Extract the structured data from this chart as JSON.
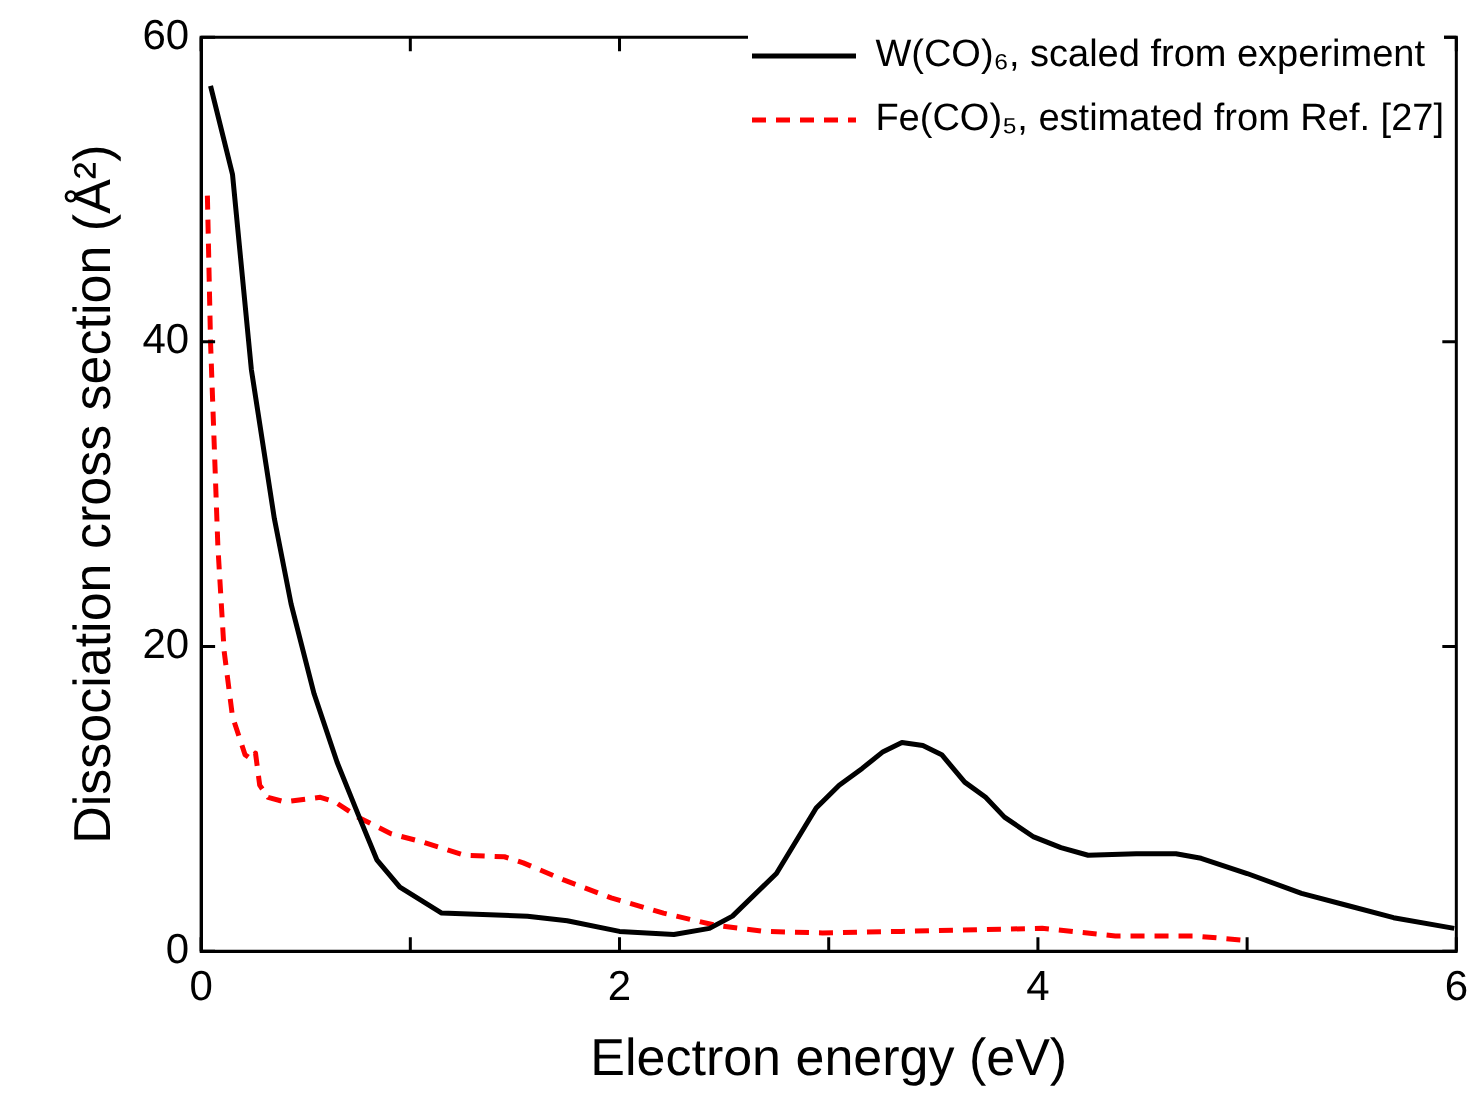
{
  "chart_data": {
    "type": "line",
    "xlabel": "Electron energy (eV)",
    "ylabel": "Dissociation cross section (Å²)",
    "xlim": [
      0,
      6
    ],
    "xticks": [
      0,
      {
        "value": 1,
        "label": null
      },
      2,
      {
        "value": 3,
        "label": null
      },
      4,
      {
        "value": 5,
        "label": null
      },
      6
    ],
    "ylim": [
      0,
      60
    ],
    "yticks": [
      0,
      20,
      40,
      60
    ],
    "grid": false,
    "legend": "top right",
    "marker": "none",
    "series": [
      {
        "name": "W(CO)₆, scaled from experiment",
        "color": "#000000",
        "line_style": "solid",
        "x": [
          0.045,
          0.15,
          0.24,
          0.35,
          0.43,
          0.54,
          0.65,
          0.75,
          0.84,
          0.95,
          1.15,
          1.56,
          1.75,
          2.0,
          2.26,
          2.43,
          2.54,
          2.75,
          2.94,
          3.05,
          3.16,
          3.26,
          3.35,
          3.45,
          3.54,
          3.65,
          3.75,
          3.84,
          3.98,
          4.11,
          4.24,
          4.47,
          4.66,
          4.78,
          5.0,
          5.26,
          5.48,
          5.7,
          5.99
        ],
        "values": [
          56.8,
          51,
          38.2,
          28.4,
          22.8,
          16.9,
          12.4,
          9.0,
          6.0,
          4.2,
          2.5,
          2.3,
          2.0,
          1.3,
          1.1,
          1.5,
          2.3,
          5.1,
          9.4,
          10.9,
          12.0,
          13.1,
          13.7,
          13.5,
          12.9,
          11.1,
          10.1,
          8.8,
          7.5,
          6.8,
          6.3,
          6.4,
          6.4,
          6.1,
          5.1,
          3.8,
          3.0,
          2.2,
          1.5
        ]
      },
      {
        "name": "Fe(CO)₅, estimated from Ref. [27]",
        "color": "#ff0000",
        "line_style": "dashed",
        "x": [
          0.03,
          0.045,
          0.08,
          0.11,
          0.15,
          0.21,
          0.24,
          0.26,
          0.28,
          0.32,
          0.4,
          0.57,
          0.64,
          0.75,
          0.91,
          1.05,
          1.26,
          1.45,
          1.54,
          1.73,
          1.96,
          2.21,
          2.46,
          2.69,
          2.97,
          3.35,
          4.02,
          4.37,
          4.75,
          5.0
        ],
        "values": [
          49.6,
          40,
          26.6,
          19.7,
          15.4,
          12.9,
          12.6,
          13,
          10.9,
          10.1,
          9.8,
          10.1,
          9.8,
          8.8,
          7.7,
          7.2,
          6.3,
          6.2,
          5.8,
          4.7,
          3.5,
          2.5,
          1.7,
          1.3,
          1.2,
          1.3,
          1.5,
          1.0,
          1.0,
          0.7
        ]
      }
    ]
  }
}
